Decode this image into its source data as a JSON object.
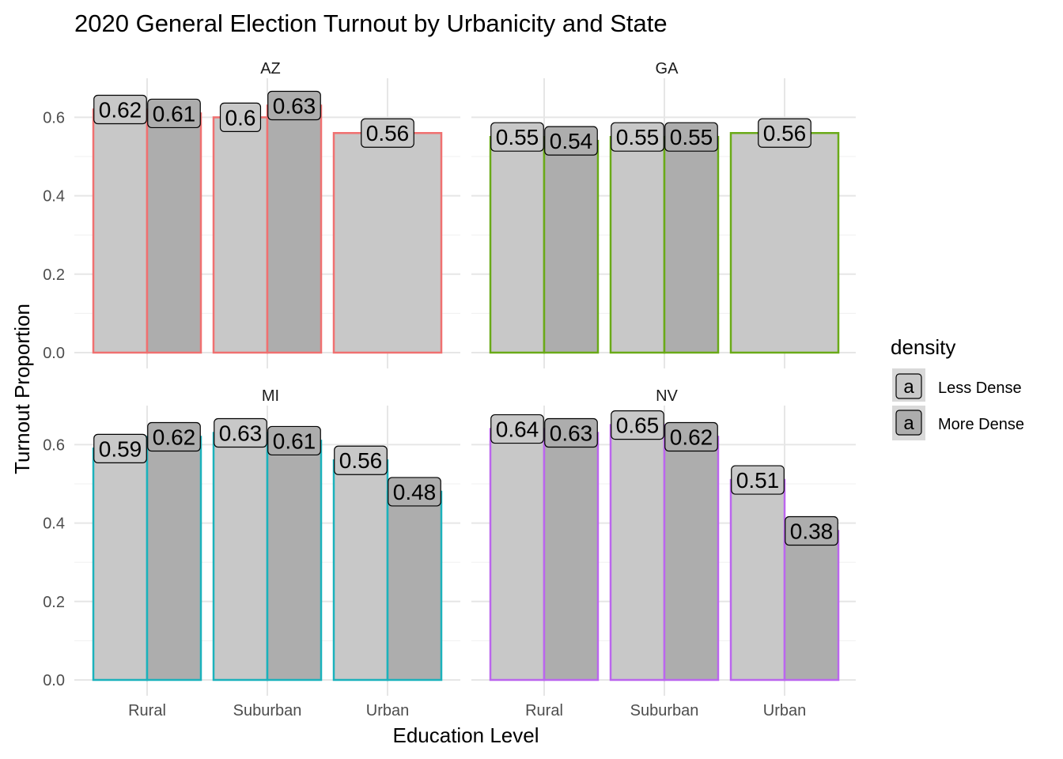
{
  "chart_data": {
    "type": "bar",
    "title": "2020 General Election Turnout by Urbanicity and State",
    "xlabel": "Education Level",
    "ylabel": "Turnout Proportion",
    "ylim": [
      0,
      0.67
    ],
    "y_ticks": [
      "0.0",
      "0.2",
      "0.4",
      "0.6"
    ],
    "categories": [
      "Rural",
      "Suburban",
      "Urban"
    ],
    "legend": {
      "title": "density",
      "placement": "right",
      "key_glyph": "a",
      "items": [
        {
          "label": "Less Dense",
          "fill": "#c8c8c8"
        },
        {
          "label": "More Dense",
          "fill": "#adadad"
        }
      ]
    },
    "grid": true,
    "panels": [
      {
        "state": "AZ",
        "outline": "#f07070",
        "less_dense": [
          0.62,
          0.6,
          0.56
        ],
        "more_dense": [
          0.61,
          0.63,
          null
        ],
        "less_labels": [
          "0.62",
          "0.6",
          "0.56"
        ],
        "more_labels": [
          "0.61",
          "0.63",
          ""
        ]
      },
      {
        "state": "GA",
        "outline": "#6aaa18",
        "less_dense": [
          0.55,
          0.55,
          0.56
        ],
        "more_dense": [
          0.54,
          0.55,
          null
        ],
        "less_labels": [
          "0.55",
          "0.55",
          "0.56"
        ],
        "more_labels": [
          "0.54",
          "0.55",
          ""
        ]
      },
      {
        "state": "MI",
        "outline": "#1bb2bc",
        "less_dense": [
          0.59,
          0.63,
          0.56
        ],
        "more_dense": [
          0.62,
          0.61,
          0.48
        ],
        "less_labels": [
          "0.59",
          "0.63",
          "0.56"
        ],
        "more_labels": [
          "0.62",
          "0.61",
          "0.48"
        ]
      },
      {
        "state": "NV",
        "outline": "#bb66ee",
        "less_dense": [
          0.64,
          0.65,
          0.51
        ],
        "more_dense": [
          0.63,
          0.62,
          0.38
        ],
        "less_labels": [
          "0.64",
          "0.65",
          "0.51"
        ],
        "more_labels": [
          "0.63",
          "0.62",
          "0.38"
        ]
      }
    ]
  }
}
